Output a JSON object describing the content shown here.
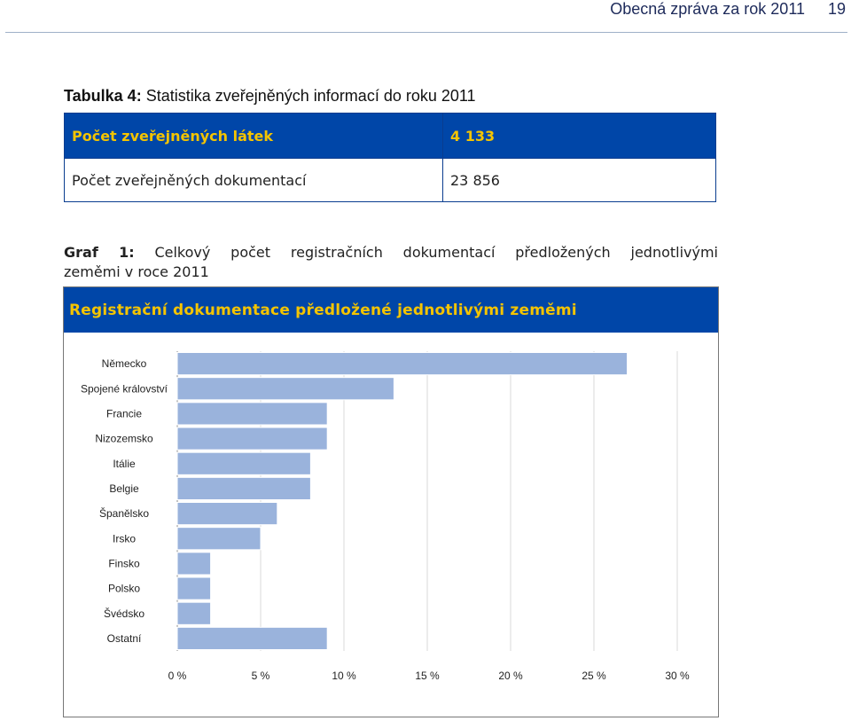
{
  "header": {
    "title": "Obecná zpráva za rok 2011",
    "page_number": "19"
  },
  "table": {
    "caption_prefix": "Tabulka 4:",
    "caption_text": " Statistika zveřejněných informací do roku 2011",
    "rows": [
      {
        "label": "Počet zveřejněných látek",
        "value": "4 133"
      },
      {
        "label": "Počet zveřejněných dokumentací",
        "value": "23 856"
      }
    ]
  },
  "graf": {
    "caption_prefix": "Graf 1:",
    "caption_line1": " Celkový počet registračních dokumentací předložených jednotlivými",
    "caption_line2": "zeměmi v roce 2011"
  },
  "chart_data": {
    "type": "bar",
    "orientation": "horizontal",
    "title": "Registrační dokumentace předložené jednotlivými zeměmi",
    "categories": [
      "Německo",
      "Spojené království",
      "Francie",
      "Nizozemsko",
      "Itálie",
      "Belgie",
      "Španělsko",
      "Irsko",
      "Finsko",
      "Polsko",
      "Švédsko",
      "Ostatní"
    ],
    "values": [
      27,
      13,
      9,
      9,
      8,
      8,
      6,
      5,
      2,
      2,
      2,
      9
    ],
    "unit": "%",
    "xlim": [
      0,
      30
    ],
    "xticks": [
      "0 %",
      "5 %",
      "10 %",
      "15 %",
      "20 %",
      "25 %",
      "30 %"
    ],
    "bar_color": "#9ab3dc"
  }
}
